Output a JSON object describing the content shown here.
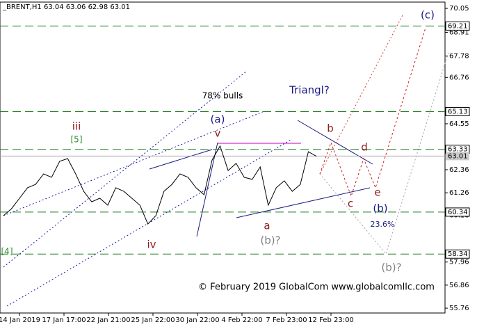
{
  "chart_data": {
    "type": "line",
    "title": "_BRENT,H1 63.04 63.06 62.98 63.01",
    "x_labels": [
      "14 Jan 2019",
      "17 Jan 17:00",
      "22 Jan 21:00",
      "25 Jan 22:00",
      "30 Jan 22:00",
      "4 Feb 22:00",
      "7 Feb 23:00",
      "12 Feb 23:00"
    ],
    "series": [
      {
        "color": "#000000",
        "values": [
          60.17,
          60.5,
          61.0,
          61.5,
          61.66,
          62.16,
          62.0,
          62.76,
          62.89,
          62.16,
          61.33,
          60.83,
          61.0,
          60.67,
          61.5,
          61.33,
          61.0,
          60.67,
          59.77,
          60.17,
          61.33,
          61.66,
          62.16,
          62.0,
          61.5,
          61.17,
          62.82,
          63.49,
          62.32,
          62.66,
          62.0,
          61.9,
          62.49,
          60.67,
          61.5,
          61.83,
          61.33,
          61.66,
          63.22,
          63.0
        ]
      }
    ],
    "ylim": [
      55.53,
      70.35
    ],
    "yticks": [
      70.05,
      68.91,
      67.78,
      66.76,
      64.55,
      62.36,
      61.26,
      60.18,
      57.96,
      56.86,
      55.76
    ],
    "levels": [
      69.21,
      65.13,
      63.33,
      60.34,
      58.34
    ],
    "level_color": "#1a7a1a",
    "last_price": 63.01,
    "annotations": [
      {
        "text": "iii",
        "color": "#8b1a1a"
      },
      {
        "text": "[5]",
        "color": "#2e8b2e"
      },
      {
        "text": "iv",
        "color": "#8b1a1a"
      },
      {
        "text": "[4]",
        "color": "#2e8b2e"
      },
      {
        "text": "(a)",
        "color": "#1a1a80"
      },
      {
        "text": "v",
        "color": "#8b1a1a"
      },
      {
        "text": "78% bulls",
        "color": "#000000"
      },
      {
        "text": "Triangl?",
        "color": "#1a1a80"
      },
      {
        "text": "b",
        "color": "#8b1a1a"
      },
      {
        "text": "d",
        "color": "#8b1a1a"
      },
      {
        "text": "c",
        "color": "#8b1a1a"
      },
      {
        "text": "e",
        "color": "#8b1a1a"
      },
      {
        "text": "a",
        "color": "#8b1a1a"
      },
      {
        "text": "(b)?",
        "color": "#808080"
      },
      {
        "text": "(b)",
        "color": "#1a1a80"
      },
      {
        "text": "23.6%",
        "color": "#1a1a80"
      },
      {
        "text": "(b)?",
        "color": "#808080"
      },
      {
        "text": "(c)",
        "color": "#1a1a80"
      },
      {
        "text": "© February 2019 GlobalCom www.globalcomllc.com",
        "color": "#000000"
      }
    ]
  }
}
